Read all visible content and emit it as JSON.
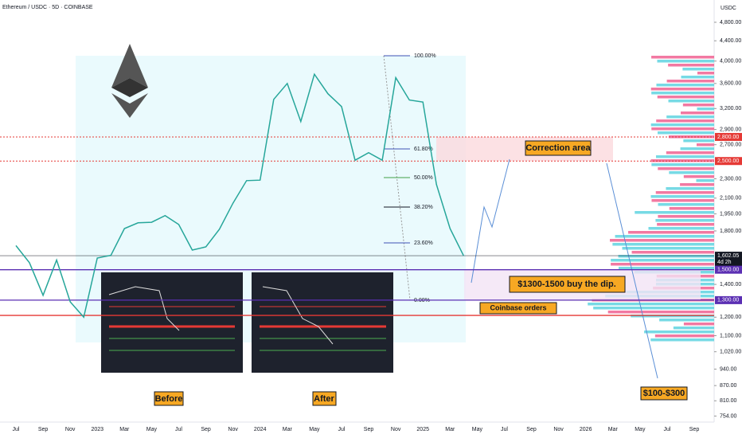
{
  "header": {
    "symbol": "Ethereum / USDC · 5D · COINBASE",
    "currency": "USDC"
  },
  "chart_data": {
    "type": "line",
    "log_scale": true,
    "categories": [
      "Jul",
      null,
      "Sep",
      null,
      "Nov",
      null,
      "2023",
      null,
      "Mar",
      null,
      "May",
      null,
      "Jul",
      null,
      "Sep",
      null,
      "Nov",
      null,
      "2024",
      null,
      "Mar",
      null,
      "May",
      null,
      "Jul",
      null,
      "Sep",
      null,
      "Nov",
      null,
      "2025",
      null,
      "Mar",
      null,
      "May",
      null,
      "Jul",
      null,
      "Sep",
      null,
      "Nov",
      null,
      "2026",
      null,
      "Mar",
      null,
      "May",
      null,
      "Jul",
      null,
      "Sep"
    ],
    "series": [
      {
        "name": "ETH/USDC",
        "color": "#26a69a",
        "values": [
          1680,
          1550,
          1330,
          1570,
          1290,
          1200,
          1585,
          1605,
          1820,
          1870,
          1875,
          1935,
          1855,
          1645,
          1670,
          1815,
          2050,
          2280,
          2285,
          3340,
          3600,
          3010,
          3760,
          3430,
          3230,
          2510,
          2600,
          2510,
          3700,
          3330,
          3300,
          2240,
          1820,
          1602.05,
          null,
          null,
          null,
          null,
          null,
          null,
          null,
          null,
          null,
          null,
          null,
          null,
          null,
          null,
          null,
          null,
          null
        ]
      }
    ],
    "ylim": [
      680,
      5330
    ],
    "yticks": [
      {
        "value": 4800,
        "label": "4,800.00"
      },
      {
        "value": 4400,
        "label": "4,400.00"
      },
      {
        "value": 4000,
        "label": "4,000.00"
      },
      {
        "value": 3600,
        "label": "3,600.00"
      },
      {
        "value": 3200,
        "label": "3,200.00"
      },
      {
        "value": 2900,
        "label": "2,900.00"
      },
      {
        "value": 2700,
        "label": "2,700.00"
      },
      {
        "value": 2300,
        "label": "2,300.00"
      },
      {
        "value": 2100,
        "label": "2,100.00"
      },
      {
        "value": 1950,
        "label": "1,950.00"
      },
      {
        "value": 1800,
        "label": "1,800.00"
      },
      {
        "value": 1400,
        "label": "1,400.00"
      },
      {
        "value": 1200,
        "label": "1,200.00"
      },
      {
        "value": 1100,
        "label": "1,100.00"
      },
      {
        "value": 1020,
        "label": "1,020.00"
      },
      {
        "value": 940,
        "label": "940.00"
      },
      {
        "value": 870,
        "label": "870.00"
      },
      {
        "value": 810,
        "label": "810.00"
      },
      {
        "value": 754,
        "label": "754.00"
      }
    ],
    "levels": [
      {
        "value": 2800,
        "label": "2,800.00",
        "color": "#e53935",
        "dotted": true
      },
      {
        "value": 2500,
        "label": "2,500.00",
        "color": "#e53935",
        "dotted": true
      },
      {
        "value": 1602.05,
        "label": "1,602.05",
        "color": "#131722",
        "dotted": false
      },
      {
        "value": 1500,
        "label": "1,500.00",
        "color": "#5b2fb3",
        "dotted": false
      },
      {
        "value": 1300,
        "label": "1,300.00",
        "color": "#5b2fb3",
        "dotted": false
      },
      {
        "value": 1210,
        "color": "#e53935",
        "dotted": false
      }
    ],
    "countdown": "4d 2h",
    "fib_labels": [
      "100.00%",
      "61.80%",
      "50.00%",
      "38.20%",
      "23.60%",
      "0.00%"
    ],
    "annotations": {
      "correction": "Correction area",
      "buy": "$1300-1500 buy the dip.",
      "orders": "Coinbase orders",
      "target": "$100-$300",
      "before": "Before",
      "after": "After"
    }
  }
}
